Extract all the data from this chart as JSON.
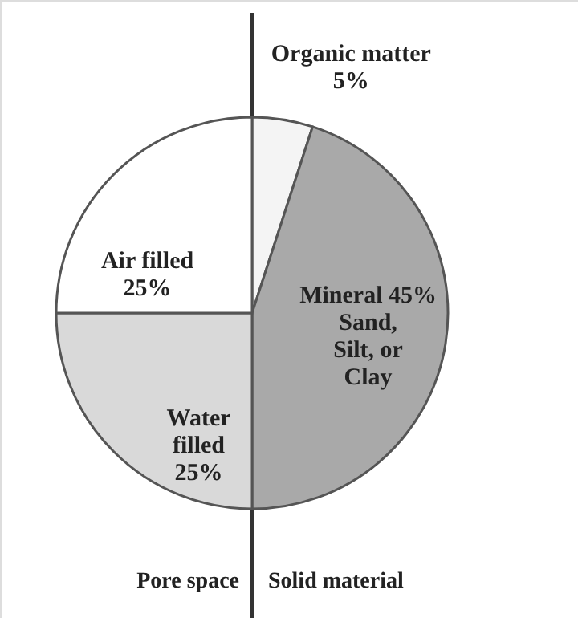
{
  "chart_data": {
    "type": "pie",
    "categories": [
      "Organic matter\n5%",
      "Mineral 45%\nSand,\nSilt, or\nClay",
      "Water\nfilled\n25%",
      "Air filled\n25%"
    ],
    "values": [
      5,
      45,
      25,
      25
    ],
    "colors": [
      "#f4f4f4",
      "#a9a9a9",
      "#d9d9d9",
      "#ffffff"
    ],
    "annotations": [
      "Pore space",
      "Solid material"
    ]
  }
}
